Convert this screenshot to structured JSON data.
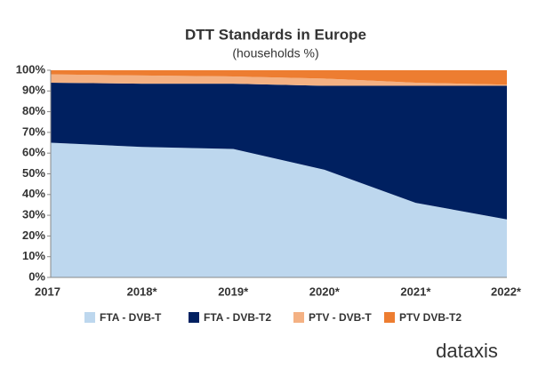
{
  "chart_data": {
    "type": "stacked_area",
    "title": "DTT Standards in Europe",
    "subtitle": "(households %)",
    "categories": [
      "2017",
      "2018*",
      "2019*",
      "2020*",
      "2021*",
      "2022*"
    ],
    "series": [
      {
        "name": "FTA - DVB-T",
        "color": "#bdd7ee",
        "values": [
          65,
          63,
          62,
          52,
          36,
          28
        ]
      },
      {
        "name": "FTA - DVB-T2",
        "color": "#002060",
        "values": [
          29,
          30.5,
          31.5,
          40.5,
          56.5,
          64.5
        ]
      },
      {
        "name": "PTV - DVB-T",
        "color": "#f4b183",
        "values": [
          4,
          4,
          3.5,
          3.5,
          1.5,
          0.5
        ]
      },
      {
        "name": "PTV DVB-T2",
        "color": "#ed7d31",
        "values": [
          2,
          2.5,
          3,
          4,
          6,
          7
        ]
      }
    ],
    "ylim": [
      0,
      100
    ],
    "yticks": [
      {
        "value": 0,
        "label": "0%"
      },
      {
        "value": 10,
        "label": "10%"
      },
      {
        "value": 20,
        "label": "20%"
      },
      {
        "value": 30,
        "label": "30%"
      },
      {
        "value": 40,
        "label": "40%"
      },
      {
        "value": 50,
        "label": "50%"
      },
      {
        "value": 60,
        "label": "60%"
      },
      {
        "value": 70,
        "label": "70%"
      },
      {
        "value": 80,
        "label": "80%"
      },
      {
        "value": 90,
        "label": "90%"
      },
      {
        "value": 100,
        "label": "100%"
      }
    ],
    "legend": "bottom",
    "logo": "dataxis"
  }
}
